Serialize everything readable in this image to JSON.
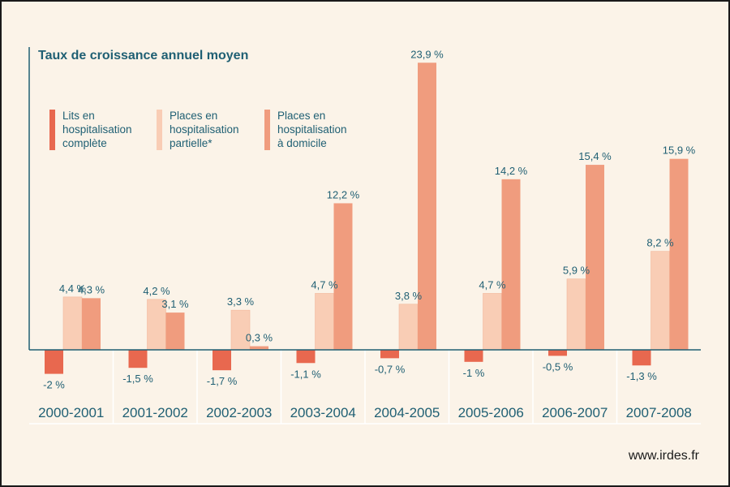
{
  "source_label": "www.irdes.fr",
  "colors": {
    "background": "#fbf3e8",
    "complete": "#e8684f",
    "partielle": "#f9cdb5",
    "domicile": "#f09c7e",
    "text": "#1f5f73"
  },
  "chart_data": {
    "type": "bar",
    "title": "Taux de croissance annuel moyen",
    "categories": [
      "2000-2001",
      "2001-2002",
      "2002-2003",
      "2003-2004",
      "2004-2005",
      "2005-2006",
      "2006-2007",
      "2007-2008"
    ],
    "series": [
      {
        "name": "Lits en\nhospitalisation\ncomplète",
        "color": "#e8684f",
        "values": [
          -2,
          -1.5,
          -1.7,
          -1.1,
          -0.7,
          -1,
          -0.5,
          -1.3
        ],
        "labels": [
          "-2 %",
          "-1,5 %",
          "-1,7 %",
          "-1,1 %",
          "-0,7 %",
          "-1 %",
          "-0,5 %",
          "-1,3 %"
        ]
      },
      {
        "name": "Places en\nhospitalisation\npartielle*",
        "color": "#f9cdb5",
        "values": [
          4.4,
          4.2,
          3.3,
          4.7,
          3.8,
          4.7,
          5.9,
          8.2
        ],
        "labels": [
          "4,4 %",
          "4,2 %",
          "3,3 %",
          "4,7 %",
          "3,8 %",
          "4,7 %",
          "5,9 %",
          "8,2 %"
        ]
      },
      {
        "name": "Places en\nhospitalisation\nà domicile",
        "color": "#f09c7e",
        "values": [
          4.3,
          3.1,
          0.3,
          12.2,
          23.9,
          14.2,
          15.4,
          15.9
        ],
        "labels": [
          "4,3 %",
          "3,1 %",
          "0,3 %",
          "12,2 %",
          "23,9 %",
          "14,2 %",
          "15,4 %",
          "15,9 %"
        ]
      }
    ],
    "ylim": [
      -3,
      27
    ],
    "grid": false,
    "legend": "top-left"
  }
}
